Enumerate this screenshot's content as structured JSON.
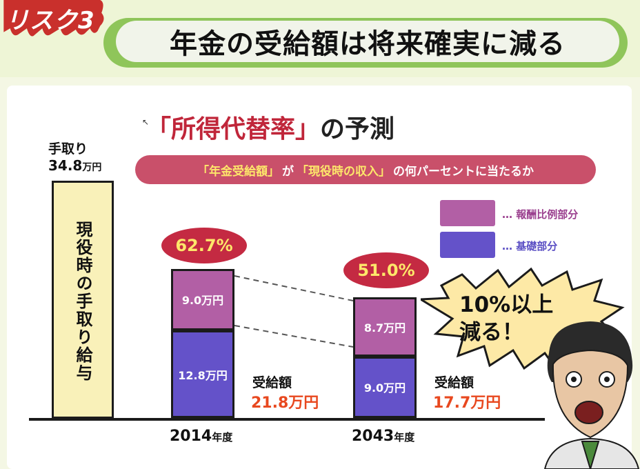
{
  "header": {
    "badge": "リスク3",
    "title": "年金の受給額は将来確実に減る"
  },
  "subtitle": {
    "open": "「",
    "term": "所得代替率",
    "close": "」",
    "rest": "の予測"
  },
  "note": {
    "a": "「年金受給額」",
    "b": "が",
    "c": "「現役時の収入」",
    "d": "の何パーセントに当たるか"
  },
  "legend": [
    {
      "label": "… 報酬比例部分",
      "color": "#b25fa5"
    },
    {
      "label": "… 基礎部分",
      "color": "#6452c9"
    }
  ],
  "takehome": {
    "label1": "手取り",
    "label2_num": "34.8",
    "label2_unit": "万円",
    "bar_text": "現役時の手取り給与",
    "value": 34.8
  },
  "bubble": {
    "line1": "10%以上",
    "line2": "減る！"
  },
  "chart_data": {
    "type": "bar",
    "stacked": true,
    "unit": "万円",
    "categories": [
      "2014年度",
      "2043年度"
    ],
    "series": [
      {
        "name": "基礎部分",
        "values": [
          12.8,
          9.0
        ],
        "labels": [
          "12.8万円",
          "9.0万円"
        ]
      },
      {
        "name": "報酬比例部分",
        "values": [
          9.0,
          8.7
        ],
        "labels": [
          "9.0万円",
          "8.7万円"
        ]
      }
    ],
    "totals": [
      21.8,
      17.7
    ],
    "total_label": "受給額",
    "total_labels": [
      "21.8万円",
      "17.7万円"
    ],
    "replacement_rate": [
      "62.7%",
      "51.0%"
    ],
    "years": [
      {
        "num": "2014",
        "unit": "年度"
      },
      {
        "num": "2043",
        "unit": "年度"
      }
    ],
    "reference": {
      "name": "現役時の手取り給与",
      "value": 34.8
    }
  }
}
